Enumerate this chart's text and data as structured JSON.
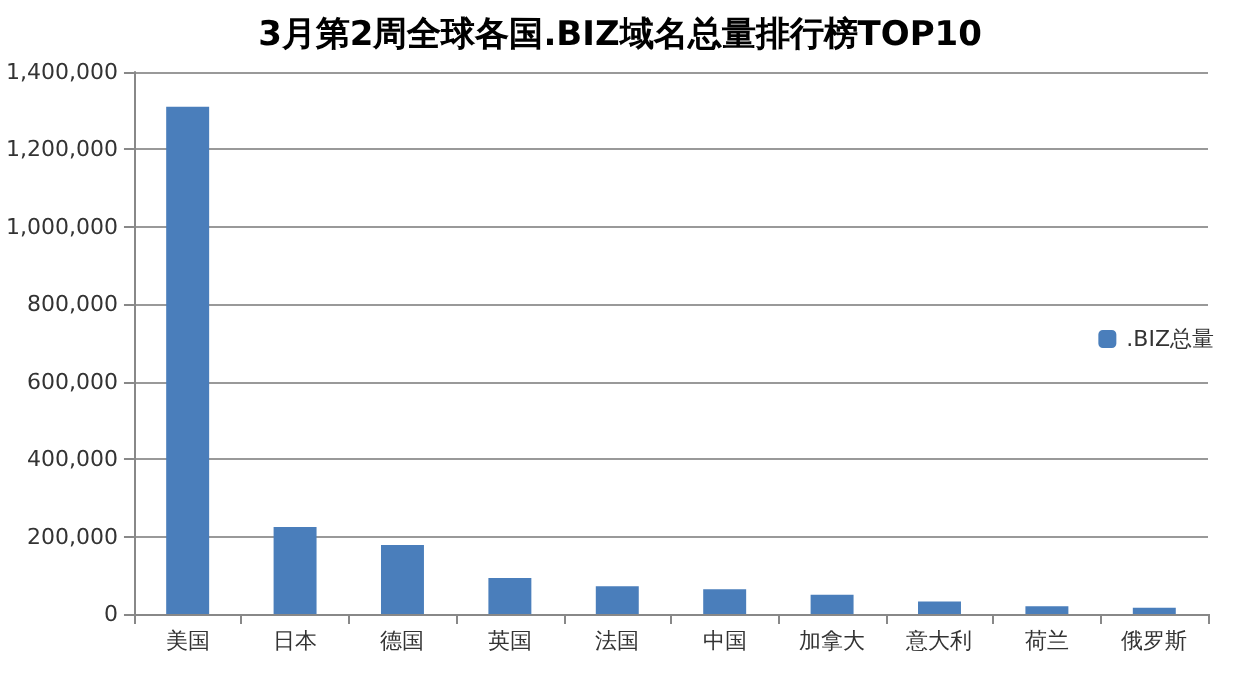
{
  "chart_data": {
    "type": "bar",
    "title": "3月第2周全球各国.BIZ域名总量排行榜TOP10",
    "categories": [
      "美国",
      "日本",
      "德国",
      "英国",
      "法国",
      "中国",
      "加拿大",
      "意大利",
      "荷兰",
      "俄罗斯"
    ],
    "series": [
      {
        "name": ".BIZ总量",
        "color": "#4a7ebb",
        "values": [
          1310000,
          225000,
          178000,
          93000,
          72000,
          64000,
          50000,
          32000,
          20000,
          16000
        ]
      }
    ],
    "ylim": [
      0,
      1400000
    ],
    "yticks": [
      {
        "value": 0,
        "label": "0"
      },
      {
        "value": 200000,
        "label": "200,000"
      },
      {
        "value": 400000,
        "label": "400,000"
      },
      {
        "value": 600000,
        "label": "600,000"
      },
      {
        "value": 800000,
        "label": "800,000"
      },
      {
        "value": 1000000,
        "label": "1,000,000"
      },
      {
        "value": 1200000,
        "label": "1,200,000"
      },
      {
        "value": 1400000,
        "label": "1,400,000"
      }
    ],
    "grid": "y",
    "legend": "right"
  }
}
